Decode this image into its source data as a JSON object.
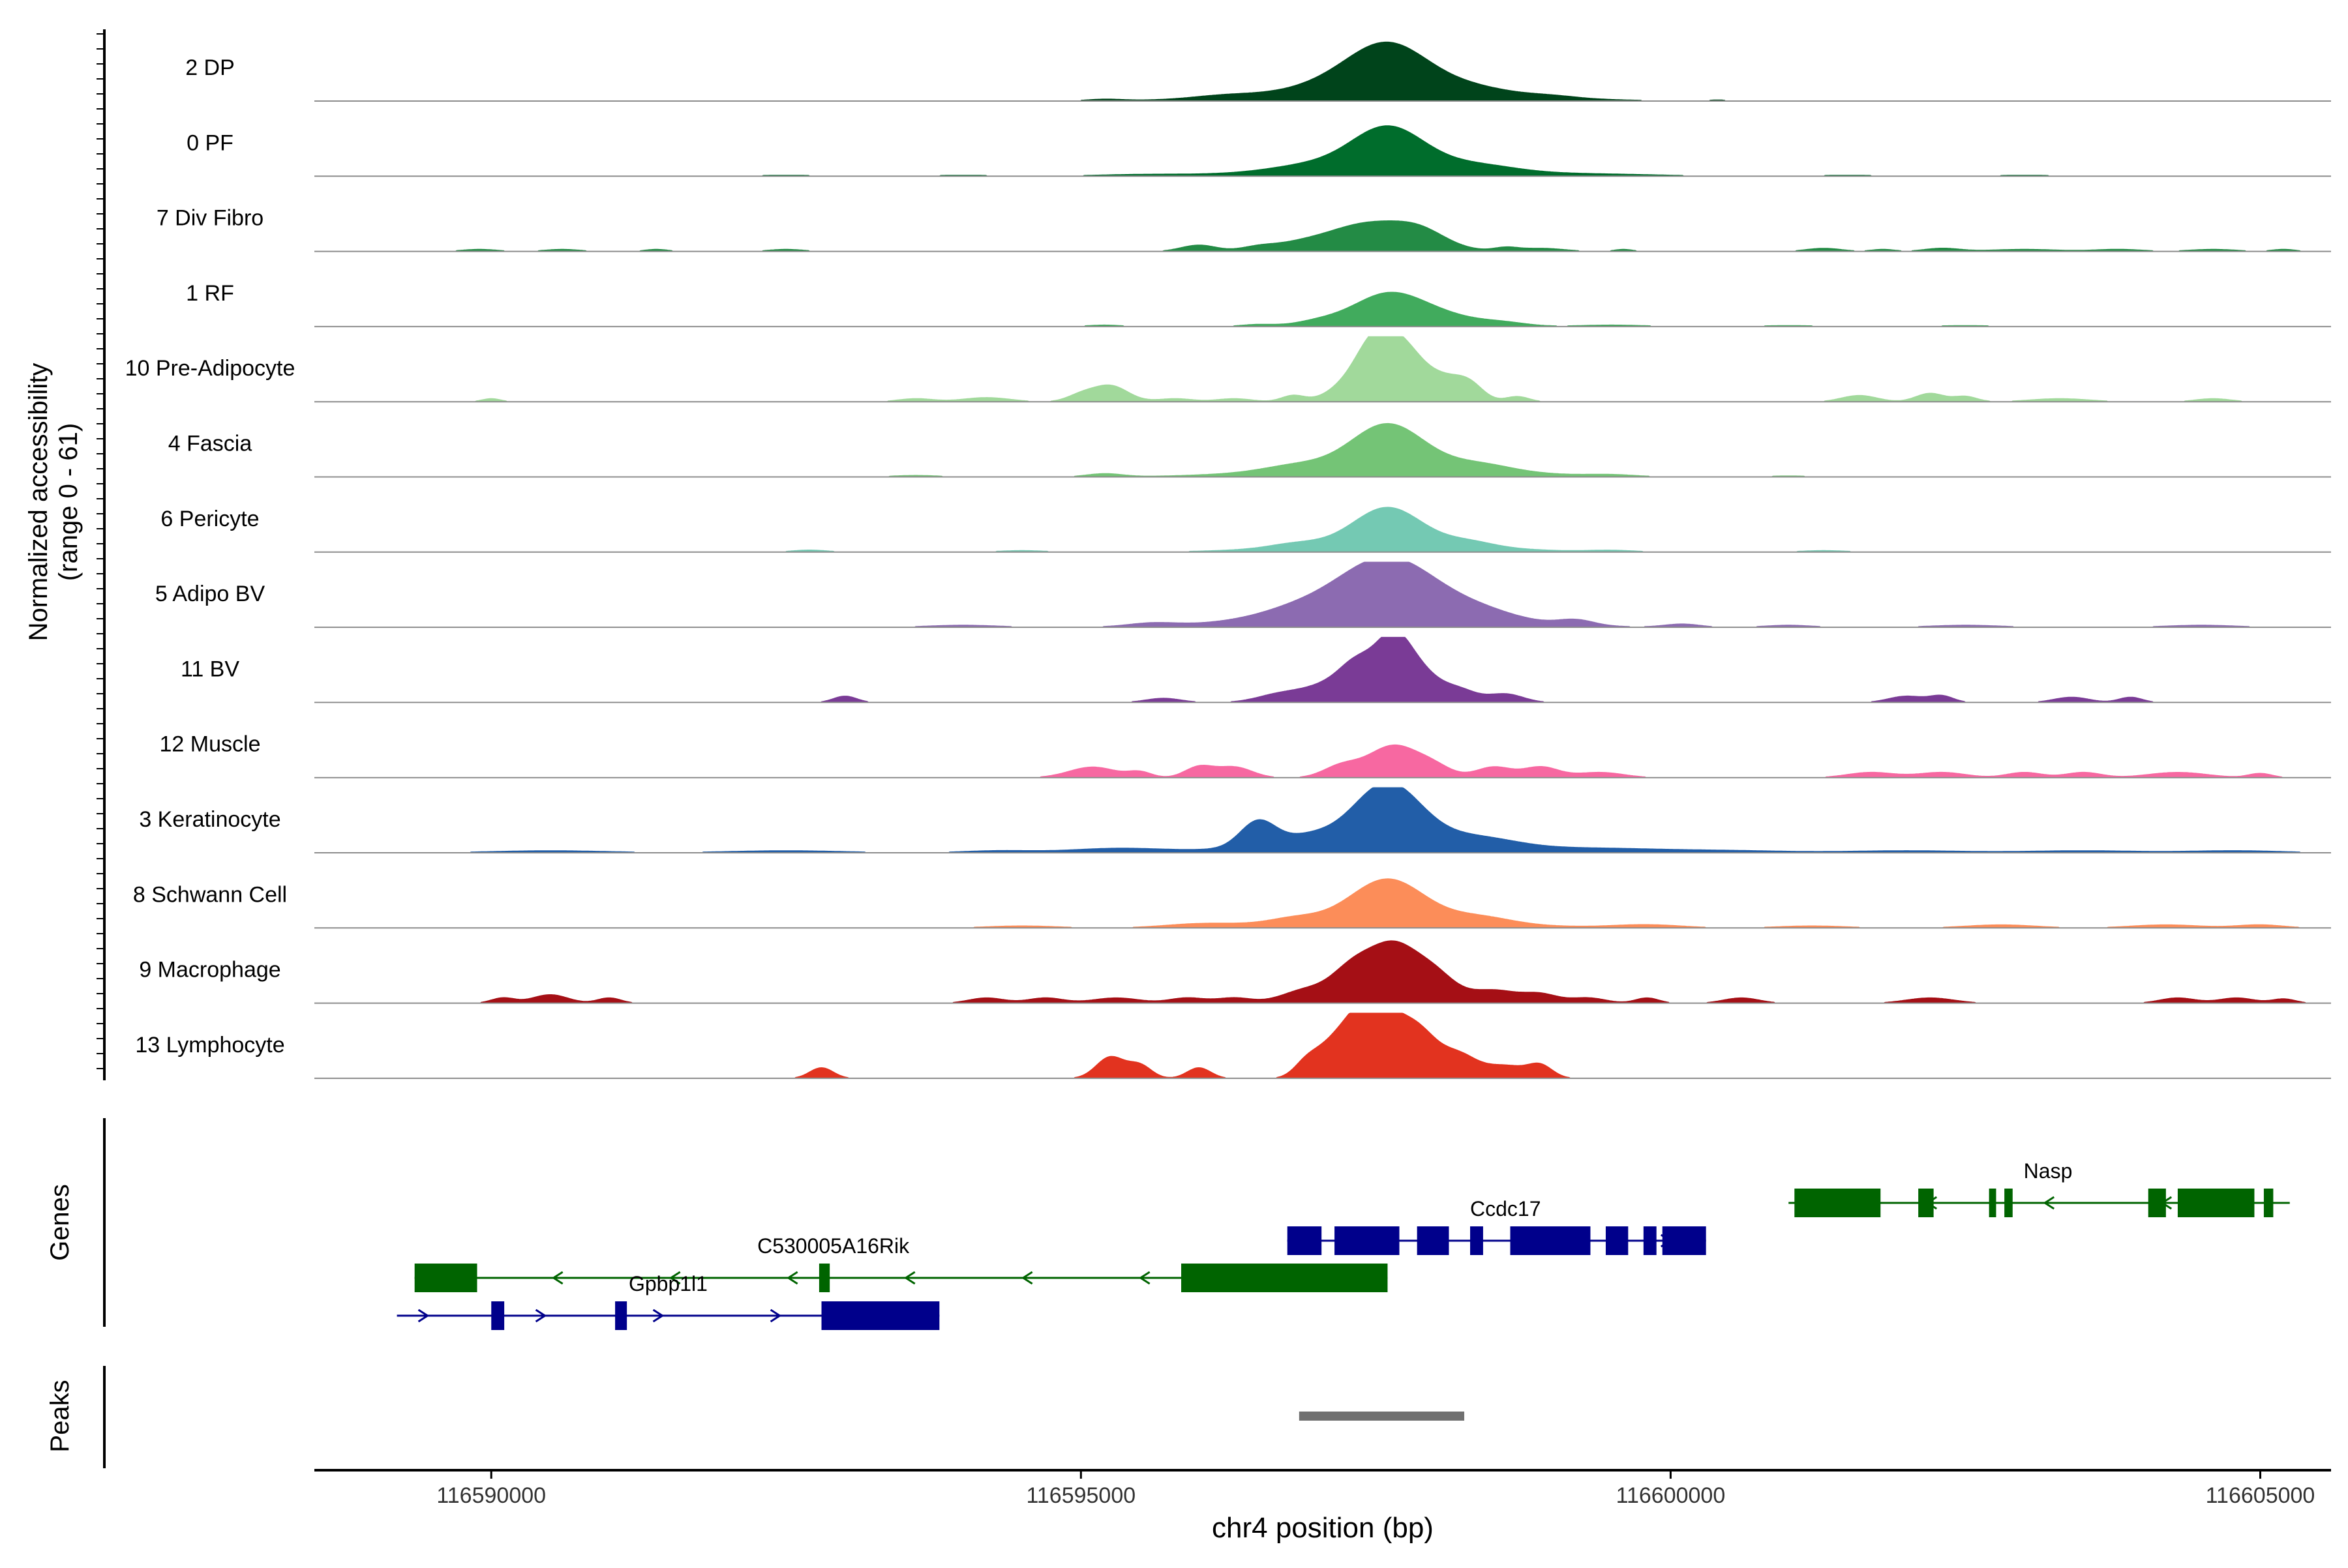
{
  "chart_data": {
    "type": "area",
    "title": "",
    "ylabel_line1": "Normalized accessibility",
    "ylabel_line2": "(range 0 - 61)",
    "xlabel": "chr4 position (bp)",
    "xlim": [
      116588500,
      116605600
    ],
    "yrange": [
      0,
      61
    ],
    "xticks": [
      116590000,
      116595000,
      116600000,
      116605000
    ],
    "xtick_labels": [
      "116590000",
      "116595000",
      "116600000",
      "116605000"
    ],
    "genes_label": "Genes",
    "peaks_label": "Peaks",
    "tracks": [
      {
        "name": "2 DP",
        "color": "#00441b",
        "peaks": [
          [
            116597600,
            40,
            330
          ],
          [
            116597600,
            14,
            900
          ],
          [
            116597100,
            4,
            300
          ],
          [
            116598300,
            4,
            300
          ],
          [
            116596200,
            2,
            250
          ],
          [
            116595200,
            1.5,
            150
          ],
          [
            116599000,
            1.5,
            200
          ],
          [
            116600400,
            1,
            80
          ]
        ]
      },
      {
        "name": "0 PF",
        "color": "#006d2c",
        "peaks": [
          [
            116597600,
            35,
            300
          ],
          [
            116597600,
            12,
            800
          ],
          [
            116596900,
            3,
            300
          ],
          [
            116598400,
            4,
            300
          ],
          [
            116599500,
            1.5,
            500
          ],
          [
            116595500,
            1.5,
            400
          ],
          [
            116592500,
            1,
            300
          ],
          [
            116594000,
            1,
            300
          ],
          [
            116601500,
            1,
            300
          ],
          [
            116603000,
            1,
            300
          ]
        ]
      },
      {
        "name": "7 Div Fibro",
        "color": "#238b45",
        "peaks": [
          [
            116597600,
            22,
            350
          ],
          [
            116597200,
            10,
            300
          ],
          [
            116597900,
            8,
            200
          ],
          [
            116596000,
            6,
            150
          ],
          [
            116596500,
            4,
            150
          ],
          [
            116596800,
            4,
            200
          ],
          [
            116598600,
            3,
            100
          ],
          [
            116598900,
            3,
            200
          ],
          [
            116589900,
            2,
            150
          ],
          [
            116590600,
            2,
            150
          ],
          [
            116591400,
            2,
            100
          ],
          [
            116592500,
            2,
            150
          ],
          [
            116599600,
            2,
            80
          ],
          [
            116601300,
            3,
            150
          ],
          [
            116601800,
            2,
            100
          ],
          [
            116602300,
            3,
            150
          ],
          [
            116603000,
            2,
            300
          ],
          [
            116603800,
            2,
            200
          ],
          [
            116604600,
            2,
            200
          ],
          [
            116605200,
            2,
            100
          ]
        ]
      },
      {
        "name": "1 RF",
        "color": "#41ab5d",
        "peaks": [
          [
            116597600,
            30,
            300
          ],
          [
            116598100,
            8,
            300
          ],
          [
            116597000,
            4,
            200
          ],
          [
            116598600,
            3,
            200
          ],
          [
            116596500,
            2,
            150
          ],
          [
            116595200,
            1.5,
            150
          ],
          [
            116599500,
            1.5,
            300
          ],
          [
            116601000,
            1,
            300
          ],
          [
            116602500,
            1,
            300
          ]
        ]
      },
      {
        "name": "10 Pre-Adipocyte",
        "color": "#a1d99b",
        "peaks": [
          [
            116597700,
            55,
            200
          ],
          [
            116597450,
            35,
            150
          ],
          [
            116598100,
            16,
            150
          ],
          [
            116598300,
            14,
            120
          ],
          [
            116597200,
            10,
            150
          ],
          [
            116596800,
            6,
            100
          ],
          [
            116595250,
            15,
            150
          ],
          [
            116595000,
            6,
            120
          ],
          [
            116598700,
            5,
            100
          ],
          [
            116590000,
            3,
            80
          ],
          [
            116593600,
            3,
            150
          ],
          [
            116594200,
            4,
            200
          ],
          [
            116595800,
            3,
            150
          ],
          [
            116596300,
            3,
            150
          ],
          [
            116601600,
            6,
            150
          ],
          [
            116602200,
            8,
            120
          ],
          [
            116602500,
            5,
            100
          ],
          [
            116603300,
            3,
            250
          ],
          [
            116604600,
            3,
            150
          ]
        ]
      },
      {
        "name": "4 Fascia",
        "color": "#74c476",
        "peaks": [
          [
            116597600,
            38,
            300
          ],
          [
            116597600,
            12,
            850
          ],
          [
            116598400,
            5,
            250
          ],
          [
            116596800,
            4,
            250
          ],
          [
            116595200,
            3,
            150
          ],
          [
            116593600,
            1.5,
            200
          ],
          [
            116599500,
            1.5,
            200
          ],
          [
            116601000,
            1,
            200
          ]
        ]
      },
      {
        "name": "6 Pericyte",
        "color": "#74c9b3",
        "peaks": [
          [
            116597600,
            32,
            280
          ],
          [
            116597600,
            10,
            750
          ],
          [
            116598300,
            4,
            200
          ],
          [
            116596800,
            3,
            200
          ],
          [
            116592700,
            2,
            150
          ],
          [
            116594500,
            1.5,
            200
          ],
          [
            116599500,
            1.5,
            200
          ],
          [
            116601300,
            1.5,
            200
          ]
        ]
      },
      {
        "name": "5 Adipo BV",
        "color": "#8c6bb1",
        "peaks": [
          [
            116597600,
            48,
            400
          ],
          [
            116597500,
            18,
            850
          ],
          [
            116596800,
            5,
            300
          ],
          [
            116598400,
            6,
            300
          ],
          [
            116595600,
            3,
            200
          ],
          [
            116594000,
            2,
            300
          ],
          [
            116599200,
            5,
            150
          ],
          [
            116600100,
            3,
            150
          ],
          [
            116601000,
            2,
            200
          ],
          [
            116602500,
            2,
            300
          ],
          [
            116604500,
            2,
            300
          ]
        ]
      },
      {
        "name": "11 BV",
        "color": "#7a3b96",
        "peaks": [
          [
            116597650,
            58,
            150
          ],
          [
            116597350,
            30,
            150
          ],
          [
            116597900,
            22,
            150
          ],
          [
            116597100,
            15,
            200
          ],
          [
            116598200,
            12,
            150
          ],
          [
            116596700,
            8,
            200
          ],
          [
            116598600,
            8,
            150
          ],
          [
            116593000,
            6,
            100
          ],
          [
            116595700,
            4,
            150
          ],
          [
            116602000,
            6,
            150
          ],
          [
            116602300,
            6,
            100
          ],
          [
            116603400,
            5,
            150
          ],
          [
            116603900,
            5,
            100
          ]
        ]
      },
      {
        "name": "12 Muscle",
        "color": "#f768a1",
        "peaks": [
          [
            116597650,
            30,
            220
          ],
          [
            116597200,
            10,
            150
          ],
          [
            116598000,
            8,
            150
          ],
          [
            116598500,
            10,
            150
          ],
          [
            116598900,
            10,
            150
          ],
          [
            116595100,
            10,
            200
          ],
          [
            116596000,
            10,
            120
          ],
          [
            116596300,
            10,
            150
          ],
          [
            116595500,
            5,
            100
          ],
          [
            116599400,
            5,
            200
          ],
          [
            116601700,
            5,
            200
          ],
          [
            116602300,
            5,
            200
          ],
          [
            116603000,
            5,
            150
          ],
          [
            116603500,
            5,
            150
          ],
          [
            116604300,
            5,
            250
          ],
          [
            116605000,
            4,
            100
          ]
        ]
      },
      {
        "name": "3 Keratinocyte",
        "color": "#225ea8",
        "peaks": [
          [
            116597600,
            52,
            280
          ],
          [
            116597600,
            14,
            850
          ],
          [
            116596500,
            24,
            150
          ],
          [
            116596900,
            6,
            200
          ],
          [
            116598400,
            6,
            300
          ],
          [
            116595300,
            4,
            400
          ],
          [
            116594300,
            2,
            300
          ],
          [
            116599500,
            3,
            500
          ],
          [
            116590500,
            2,
            500
          ],
          [
            116592500,
            2,
            500
          ],
          [
            116600500,
            2,
            500
          ],
          [
            116602000,
            2,
            500
          ],
          [
            116603500,
            2,
            500
          ],
          [
            116604800,
            2,
            400
          ]
        ]
      },
      {
        "name": "8 Schwann Cell",
        "color": "#fc8d59",
        "peaks": [
          [
            116597600,
            36,
            300
          ],
          [
            116597600,
            10,
            800
          ],
          [
            116598400,
            5,
            250
          ],
          [
            116596800,
            4,
            200
          ],
          [
            116596000,
            3,
            300
          ],
          [
            116594500,
            2,
            300
          ],
          [
            116599800,
            3,
            300
          ],
          [
            116601200,
            2,
            300
          ],
          [
            116602800,
            3,
            300
          ],
          [
            116604200,
            3,
            300
          ],
          [
            116605000,
            3,
            200
          ]
        ]
      },
      {
        "name": "9 Macrophage",
        "color": "#a50f15",
        "peaks": [
          [
            116597650,
            50,
            200
          ],
          [
            116597300,
            30,
            180
          ],
          [
            116598000,
            25,
            180
          ],
          [
            116596900,
            12,
            200
          ],
          [
            116598500,
            12,
            200
          ],
          [
            116598900,
            8,
            150
          ],
          [
            116590500,
            8,
            150
          ],
          [
            116590100,
            5,
            100
          ],
          [
            116591000,
            5,
            100
          ],
          [
            116594200,
            5,
            150
          ],
          [
            116594700,
            5,
            150
          ],
          [
            116595300,
            5,
            200
          ],
          [
            116595900,
            5,
            150
          ],
          [
            116596300,
            5,
            150
          ],
          [
            116599300,
            5,
            150
          ],
          [
            116599800,
            5,
            100
          ],
          [
            116600600,
            5,
            150
          ],
          [
            116602200,
            5,
            200
          ],
          [
            116604300,
            5,
            150
          ],
          [
            116604800,
            5,
            150
          ],
          [
            116605200,
            4,
            100
          ]
        ]
      },
      {
        "name": "13 Lymphocyte",
        "color": "#e2331f",
        "peaks": [
          [
            116597600,
            55,
            200
          ],
          [
            116597350,
            38,
            150
          ],
          [
            116597900,
            28,
            150
          ],
          [
            116597100,
            25,
            150
          ],
          [
            116598200,
            20,
            150
          ],
          [
            116598600,
            12,
            200
          ],
          [
            116598900,
            10,
            100
          ],
          [
            116596900,
            10,
            100
          ],
          [
            116595250,
            20,
            120
          ],
          [
            116595500,
            12,
            100
          ],
          [
            116596000,
            10,
            100
          ],
          [
            116592800,
            10,
            100
          ]
        ]
      }
    ],
    "genes": [
      {
        "name": "Nasp",
        "strand": "-",
        "color": "#006400",
        "row": 1,
        "start": 116601000,
        "end": 116605250,
        "label_x": 116603200,
        "label_row": 0,
        "exons": [
          [
            116601050,
            116601780
          ],
          [
            116602100,
            116602230
          ],
          [
            116602700,
            116602760
          ],
          [
            116602830,
            116602900
          ],
          [
            116604050,
            116604200
          ],
          [
            116604300,
            116604950
          ],
          [
            116605030,
            116605110
          ]
        ]
      },
      {
        "name": "Ccdc17",
        "strand": "+",
        "color": "#00008b",
        "row": 2,
        "start": 116596750,
        "end": 116600300,
        "label_x": 116598600,
        "label_row": 1,
        "exons": [
          [
            116596750,
            116597040
          ],
          [
            116597150,
            116597700
          ],
          [
            116597850,
            116598120
          ],
          [
            116598300,
            116598410
          ],
          [
            116598640,
            116599320
          ],
          [
            116599450,
            116599640
          ],
          [
            116599770,
            116599880
          ],
          [
            116599930,
            116600300
          ]
        ]
      },
      {
        "name": "C530005A16Rik",
        "strand": "-",
        "color": "#006400",
        "row": 3,
        "start": 116589350,
        "end": 116597600,
        "label_x": 116592900,
        "label_row": 2,
        "exons": [
          [
            116589350,
            116589880
          ],
          [
            116592780,
            116592870
          ],
          [
            116595850,
            116597600
          ]
        ]
      },
      {
        "name": "Gpbp1l1",
        "strand": "+",
        "color": "#00008b",
        "row": 4,
        "start": 116589200,
        "end": 116593800,
        "label_x": 116591500,
        "label_row": 3,
        "exons": [
          [
            116590000,
            116590110
          ],
          [
            116591050,
            116591150
          ],
          [
            116592800,
            116593800
          ]
        ]
      }
    ],
    "peaks_region": [
      116596850,
      116598250
    ]
  }
}
